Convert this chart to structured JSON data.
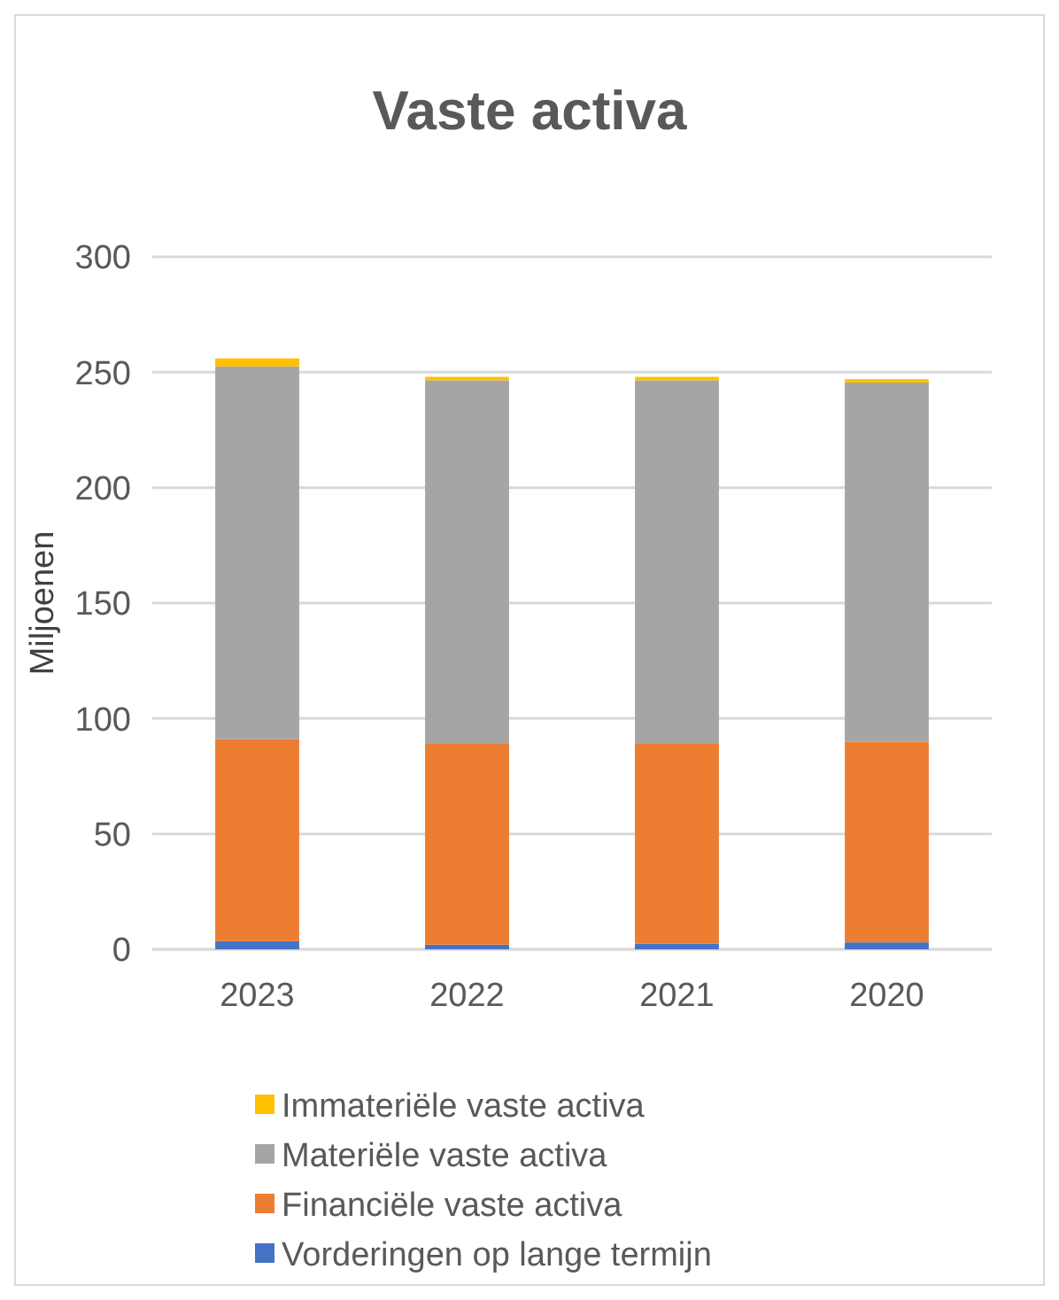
{
  "chart_data": {
    "type": "bar",
    "title": "Vaste activa",
    "ylabel": "Miljoenen",
    "categories": [
      "2023",
      "2022",
      "2021",
      "2020"
    ],
    "stacked": true,
    "series": [
      {
        "name": "Vorderingen op lange termijn",
        "color": "#4472c4",
        "values": [
          3.5,
          2,
          2.5,
          3
        ]
      },
      {
        "name": "Financiële vaste activa",
        "color": "#ed7d31",
        "values": [
          87.5,
          87,
          86.5,
          87
        ]
      },
      {
        "name": "Materiële vaste activa",
        "color": "#a5a5a5",
        "values": [
          161.5,
          157.5,
          157.5,
          155.5
        ]
      },
      {
        "name": "Immateriële vaste activa",
        "color": "#ffc000",
        "values": [
          3.5,
          1.5,
          1.5,
          1.5
        ]
      }
    ],
    "ylim": [
      0,
      300
    ],
    "yticks": [
      0,
      50,
      100,
      150,
      200,
      250,
      300
    ],
    "grid": "y",
    "legend": "bottom"
  }
}
